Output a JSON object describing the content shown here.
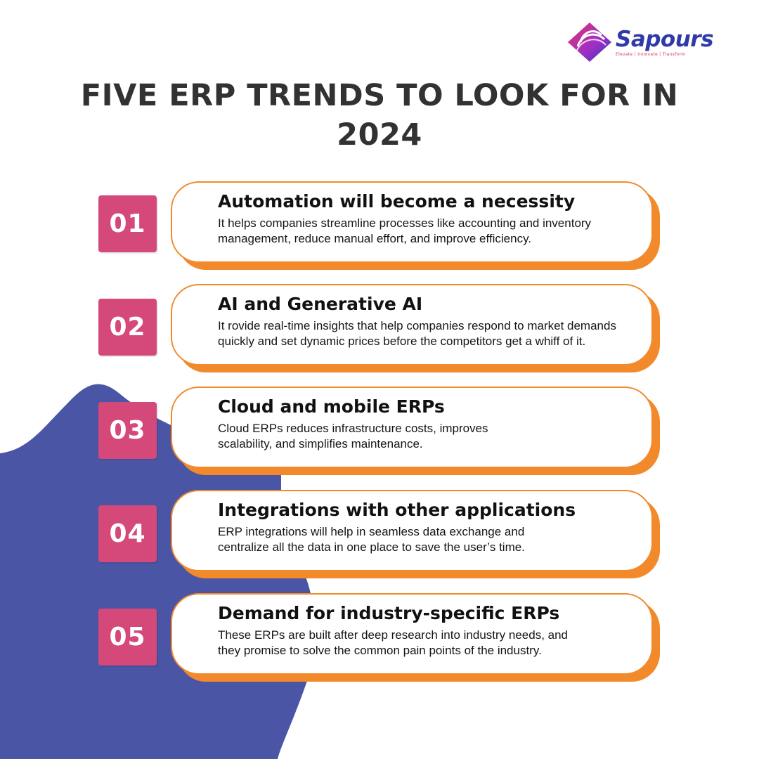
{
  "brand": {
    "name": "Sapours",
    "tagline": "Elevate | Innovate | Transform",
    "logo_colors": [
      "#e8336a",
      "#8a2be2",
      "#2f3aa8"
    ]
  },
  "title": "FIVE ERP TRENDS TO LOOK FOR IN 2024",
  "colors": {
    "badge": "#d5487a",
    "card_border": "#f28a2c",
    "background_shape": "#4a55a5",
    "title": "#333132"
  },
  "trends": [
    {
      "number": "01",
      "title": "Automation will become a necessity",
      "description": "It helps companies streamline processes like accounting and inventory\nmanagement, reduce manual effort, and improve efficiency."
    },
    {
      "number": "02",
      "title": "AI and Generative AI",
      "description": "It  rovide real-time insights that help companies respond to market demands\nquickly and set dynamic prices before the competitors get a whiff of it."
    },
    {
      "number": "03",
      "title": "Cloud and mobile ERPs",
      "description": "Cloud ERPs  reduces infrastructure costs, improves\nscalability, and simplifies maintenance."
    },
    {
      "number": "04",
      "title": "Integrations with other applications",
      "description": "ERP integrations will help in seamless data exchange and\ncentralize all the data in one place to save the user’s time."
    },
    {
      "number": "05",
      "title": " Demand for industry-specific ERPs",
      "description": "These ERPs are built after deep research into industry needs, and\nthey promise to solve the common pain points of the industry."
    }
  ]
}
